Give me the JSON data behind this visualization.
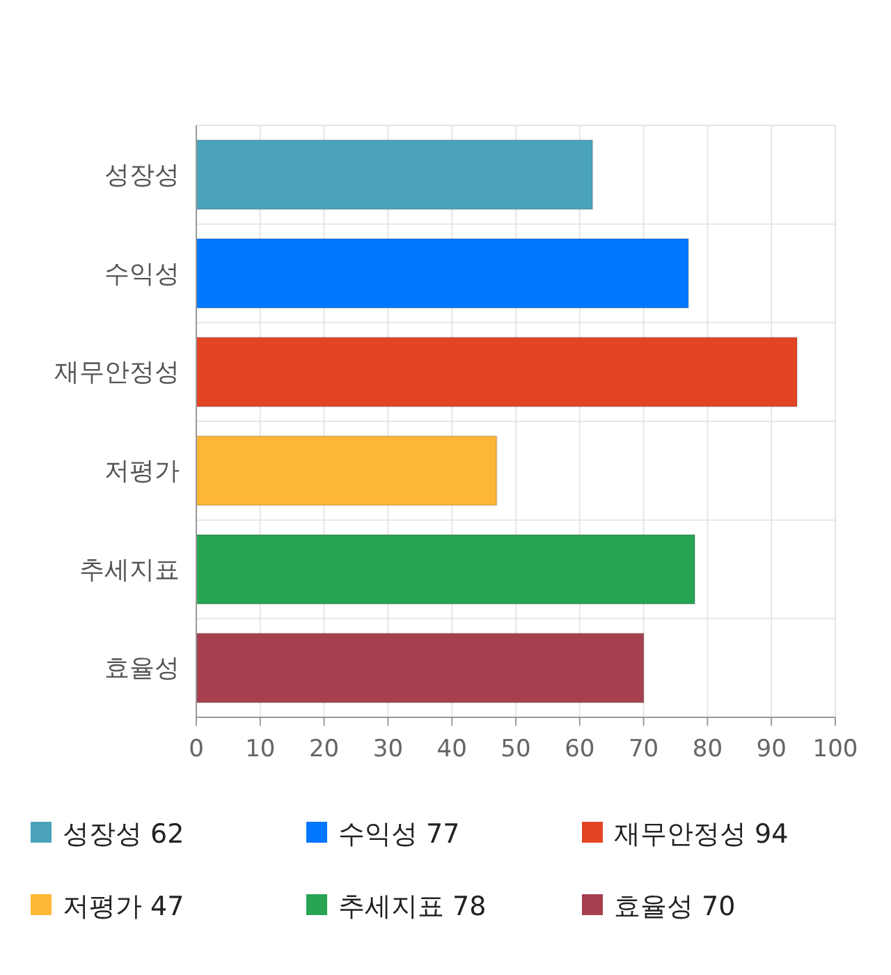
{
  "chart_data": {
    "type": "bar",
    "orientation": "horizontal",
    "categories": [
      "성장성",
      "수익성",
      "재무안정성",
      "저평가",
      "추세지표",
      "효율성"
    ],
    "series": [
      {
        "name": "성장성 62",
        "color": "#4aa3ba",
        "values": [
          62,
          null,
          null,
          null,
          null,
          null
        ]
      },
      {
        "name": "수익성 77",
        "color": "#0077ff",
        "values": [
          null,
          77,
          null,
          null,
          null,
          null
        ]
      },
      {
        "name": "재무안정성 94",
        "color": "#e34524",
        "values": [
          null,
          null,
          94,
          null,
          null,
          null
        ]
      },
      {
        "name": "저평가 47",
        "color": "#feb734",
        "values": [
          null,
          null,
          null,
          47,
          null,
          null
        ]
      },
      {
        "name": "추세지표 78",
        "color": "#28a553",
        "values": [
          null,
          null,
          null,
          null,
          78,
          null
        ]
      },
      {
        "name": "효율성 70",
        "color": "#a6404f",
        "values": [
          null,
          null,
          null,
          null,
          null,
          70
        ]
      }
    ],
    "xlim": [
      0,
      100
    ],
    "xticks": [
      0,
      10,
      20,
      30,
      40,
      50,
      60,
      70,
      80,
      90,
      100
    ],
    "grid": true,
    "legend": "bottom"
  }
}
